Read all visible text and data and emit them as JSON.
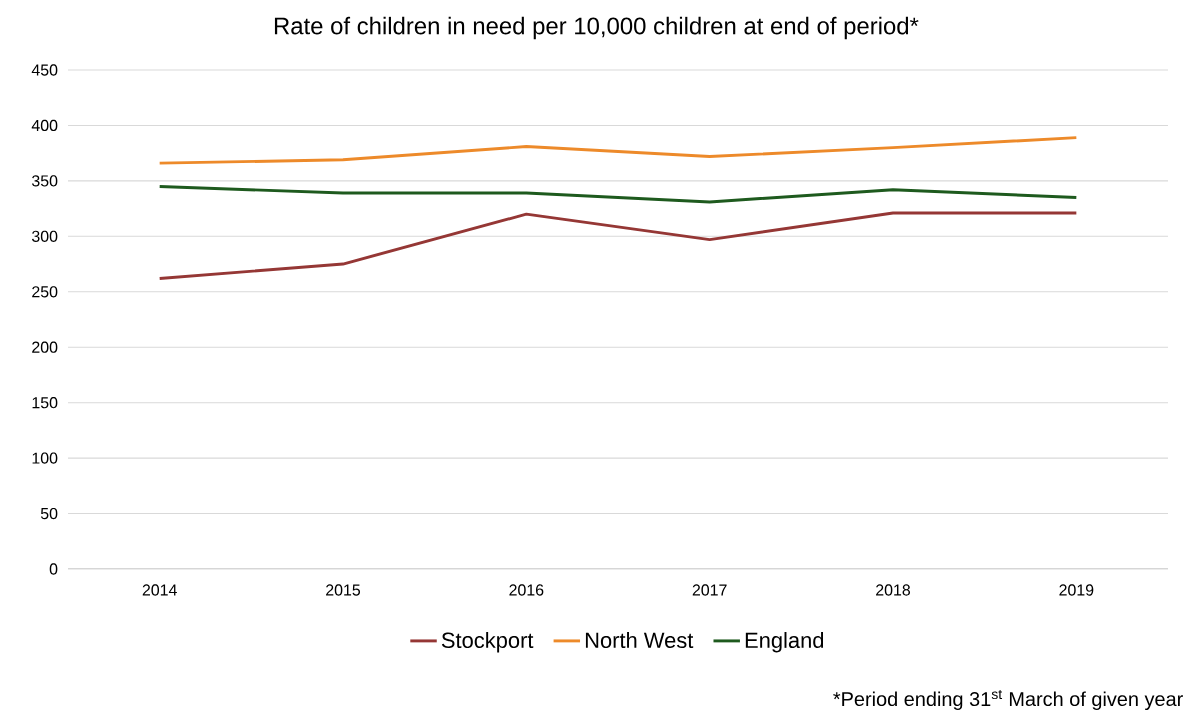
{
  "chart_data": {
    "type": "line",
    "title": "Rate of children in need per 10,000 children at end of period*",
    "categories": [
      "2014",
      "2015",
      "2016",
      "2017",
      "2018",
      "2019"
    ],
    "series": [
      {
        "name": "Stockport",
        "color": "#953735",
        "values": [
          262,
          275,
          320,
          297,
          321,
          321
        ]
      },
      {
        "name": "North West",
        "color": "#ed8a2a",
        "values": [
          366,
          369,
          381,
          372,
          380,
          389
        ]
      },
      {
        "name": "England",
        "color": "#1e5a1e",
        "values": [
          345,
          339,
          339,
          331,
          342,
          335
        ]
      }
    ],
    "ylim": [
      0,
      450
    ],
    "yticks": [
      0,
      50,
      100,
      150,
      200,
      250,
      300,
      350,
      400,
      450
    ],
    "grid": "y",
    "legend": "bottom",
    "marker": "none",
    "line_style": "solid",
    "annotations": [
      "*Period ending 31$^{st}$ March of given year"
    ]
  }
}
